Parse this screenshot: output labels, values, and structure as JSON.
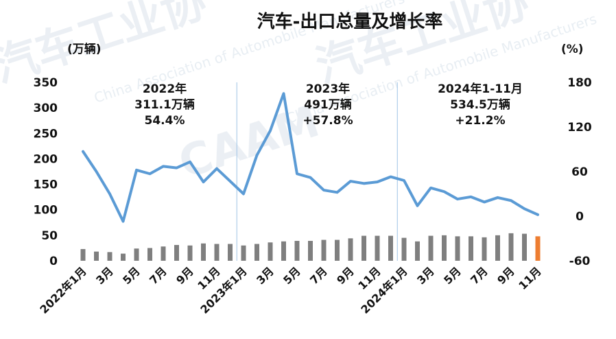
{
  "chart_data": {
    "type": "bar+line",
    "title": "汽车-出口总量及增长率",
    "left_unit": "(万辆)",
    "right_unit": "(%)",
    "left_ticks": [
      0,
      50,
      100,
      150,
      200,
      250,
      300,
      350
    ],
    "right_ticks": [
      -60,
      0,
      60,
      120,
      180
    ],
    "left_ylim": [
      0,
      350
    ],
    "right_ylim": [
      -60,
      180
    ],
    "x_tick_labels": [
      "2022年1月",
      "3月",
      "5月",
      "7月",
      "9月",
      "11月",
      "2023年1月",
      "3月",
      "5月",
      "7月",
      "9月",
      "11月",
      "2024年1月",
      "3月",
      "5月",
      "7月",
      "9月",
      "11月"
    ],
    "months": [
      "2022-01",
      "2022-02",
      "2022-03",
      "2022-04",
      "2022-05",
      "2022-06",
      "2022-07",
      "2022-08",
      "2022-09",
      "2022-10",
      "2022-11",
      "2022-12",
      "2023-01",
      "2023-02",
      "2023-03",
      "2023-04",
      "2023-05",
      "2023-06",
      "2023-07",
      "2023-08",
      "2023-09",
      "2023-10",
      "2023-11",
      "2023-12",
      "2024-01",
      "2024-02",
      "2024-03",
      "2024-04",
      "2024-05",
      "2024-06",
      "2024-07",
      "2024-08",
      "2024-09",
      "2024-10",
      "2024-11"
    ],
    "series": [
      {
        "type": "bar",
        "axis": "left",
        "color": "#7f7f7f",
        "highlight_color": "#ed7d31",
        "highlight_last": true,
        "values": [
          23,
          18,
          17,
          14,
          24,
          25,
          28,
          31,
          30,
          34,
          33,
          33,
          30,
          33,
          36,
          38,
          39,
          39,
          41,
          41,
          44,
          49,
          49,
          49,
          45,
          38,
          49,
          50,
          48,
          48,
          46,
          50,
          54,
          53,
          48
        ]
      },
      {
        "type": "line",
        "axis": "right",
        "color": "#5b9bd5",
        "values": [
          87,
          60,
          30,
          -7,
          62,
          57,
          67,
          65,
          73,
          46,
          64,
          47,
          30,
          82,
          115,
          165,
          57,
          52,
          35,
          32,
          47,
          44,
          46,
          53,
          48,
          14,
          38,
          33,
          23,
          26,
          19,
          25,
          21,
          10,
          2
        ]
      }
    ],
    "annotations": [
      {
        "lines": [
          "2022年",
          "311.1万辆",
          "54.4%"
        ]
      },
      {
        "lines": [
          "2023年",
          "491万辆",
          "+57.8%"
        ]
      },
      {
        "lines": [
          "2024年1-11月",
          "534.5万辆",
          "+21.2%"
        ]
      }
    ],
    "watermark": {
      "text": "汽车工业协",
      "sub": "China Association of Automobile Manufacturers",
      "logo": "CAAM"
    }
  }
}
